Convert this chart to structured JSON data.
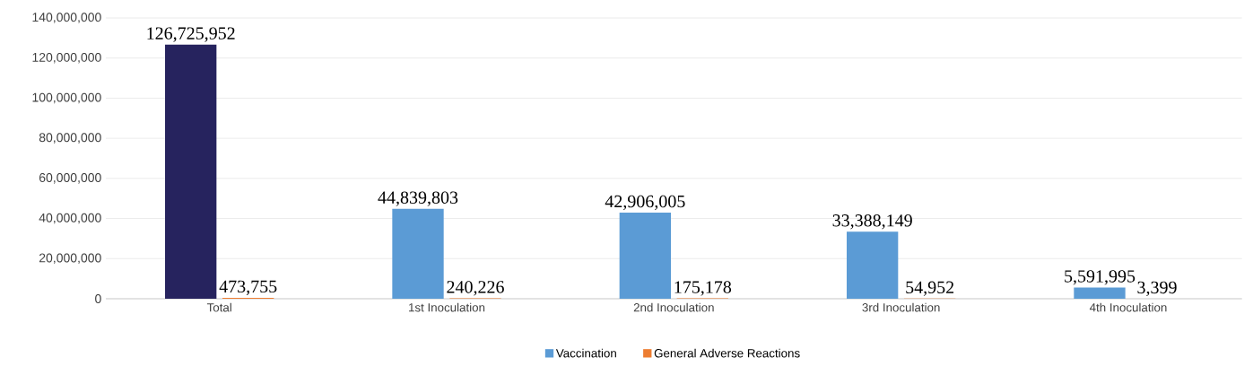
{
  "chart_data": {
    "type": "bar",
    "categories": [
      "Total",
      "1st Inoculation",
      "2nd Inoculation",
      "3rd Inoculation",
      "4th Inoculation"
    ],
    "series": [
      {
        "name": "Vaccination",
        "color": "#5b9bd5",
        "colors": [
          "#26235e",
          "#5b9bd5",
          "#5b9bd5",
          "#5b9bd5",
          "#5b9bd5"
        ],
        "values": [
          126725952,
          44839803,
          42906005,
          33388149,
          5591995
        ],
        "value_labels": [
          "126,725,952",
          "44,839,803",
          "42,906,005",
          "33,388,149",
          "5,591,995"
        ]
      },
      {
        "name": "General Adverse Reactions",
        "color": "#ed7d31",
        "values": [
          473755,
          240226,
          175178,
          54952,
          3399
        ],
        "value_labels": [
          "473,755",
          "240,226",
          "175,178",
          "54,952",
          "3,399"
        ]
      }
    ],
    "ylim": [
      0,
      140000000
    ],
    "yticks": [
      {
        "value": 0,
        "label": "0"
      },
      {
        "value": 20000000,
        "label": "20,000,000"
      },
      {
        "value": 40000000,
        "label": "40,000,000"
      },
      {
        "value": 60000000,
        "label": "60,000,000"
      },
      {
        "value": 80000000,
        "label": "80,000,000"
      },
      {
        "value": 100000000,
        "label": "100,000,000"
      },
      {
        "value": 120000000,
        "label": "120,000,000"
      },
      {
        "value": 140000000,
        "label": "140,000,000"
      }
    ],
    "grid": "y",
    "legend": "bottom"
  }
}
